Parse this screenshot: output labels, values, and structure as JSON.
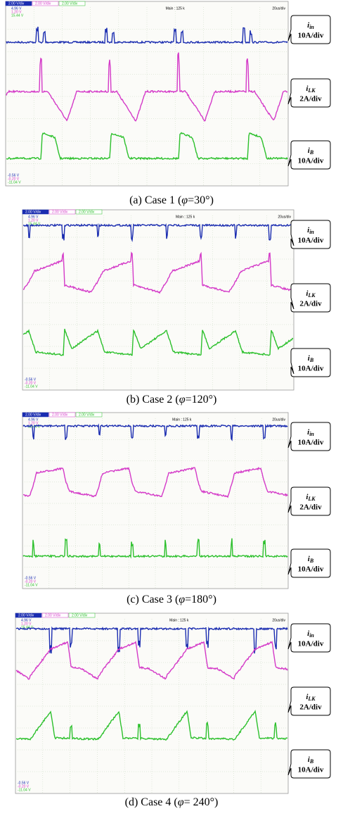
{
  "panels": [
    {
      "caption": {
        "prefix": "(a) Case 1 (",
        "var": "φ",
        "rest": "=30°)"
      },
      "scope": {
        "channels": [
          "2.00 V/div",
          "2.00 V/div",
          "2.00 V/div"
        ],
        "main": "Main : 125 k",
        "timebase": "20us/div",
        "top": [
          "4.96 V",
          "1.20 V",
          "15.44 V"
        ],
        "bottom": [
          "-0.56 V",
          "-0.20 V",
          "-11.04 V"
        ]
      },
      "labels": [
        {
          "var": "i",
          "sub": "in",
          "scale": "10A/div"
        },
        {
          "var": "i",
          "sub": "LK",
          "scale": "2A/div"
        },
        {
          "var": "i",
          "sub": "B",
          "scale": "10A/div"
        }
      ]
    },
    {
      "caption": {
        "prefix": "(b) Case 2 (",
        "var": "φ",
        "rest": "=120°)"
      },
      "scope": {
        "channels": [
          "2.00 V/div",
          "2.00 V/div",
          "2.00 V/div"
        ],
        "main": "Main : 125 k",
        "timebase": "20us/div",
        "top": [
          "4.96 V",
          "1.20 V",
          "15.44 V"
        ],
        "bottom": [
          "-0.56 V",
          "-0.20 V",
          "-11.04 V"
        ]
      },
      "labels": [
        {
          "var": "i",
          "sub": "in",
          "scale": "10A/div"
        },
        {
          "var": "i",
          "sub": "LK",
          "scale": "2A/div"
        },
        {
          "var": "i",
          "sub": "B",
          "scale": "10A/div"
        }
      ]
    },
    {
      "caption": {
        "prefix": "(c) Case 3 (",
        "var": "φ",
        "rest": "=180°)"
      },
      "scope": {
        "channels": [
          "2.00 V/div",
          "2.00 V/div",
          "2.00 V/div"
        ],
        "main": "Main : 125 k",
        "timebase": "20us/div",
        "top": [
          "4.96 V",
          "1.20 V",
          "15.44 V"
        ],
        "bottom": [
          "-0.56 V",
          "-0.20 V",
          "-11.04 V"
        ]
      },
      "labels": [
        {
          "var": "i",
          "sub": "in",
          "scale": "10A/div"
        },
        {
          "var": "i",
          "sub": "LK",
          "scale": "2A/div"
        },
        {
          "var": "i",
          "sub": "B",
          "scale": "10A/div"
        }
      ]
    },
    {
      "caption": {
        "prefix": "(d) Case 4 (",
        "var": "φ",
        "rest": "= 240°)"
      },
      "scope": {
        "channels": [
          "2.00 V/div",
          "2.00 V/div",
          "2.00 V/div"
        ],
        "main": "Main : 125 k",
        "timebase": "20us/div",
        "top": [
          "4.96 V",
          "1.20 V",
          "15.44 V"
        ],
        "bottom": [
          "-0.56 V",
          "-0.20 V",
          "-11.04 V"
        ]
      },
      "labels": [
        {
          "var": "i",
          "sub": "in",
          "scale": "10A/div"
        },
        {
          "var": "i",
          "sub": "LK",
          "scale": "2A/div"
        },
        {
          "var": "i",
          "sub": "B",
          "scale": "10A/div"
        }
      ]
    }
  ]
}
